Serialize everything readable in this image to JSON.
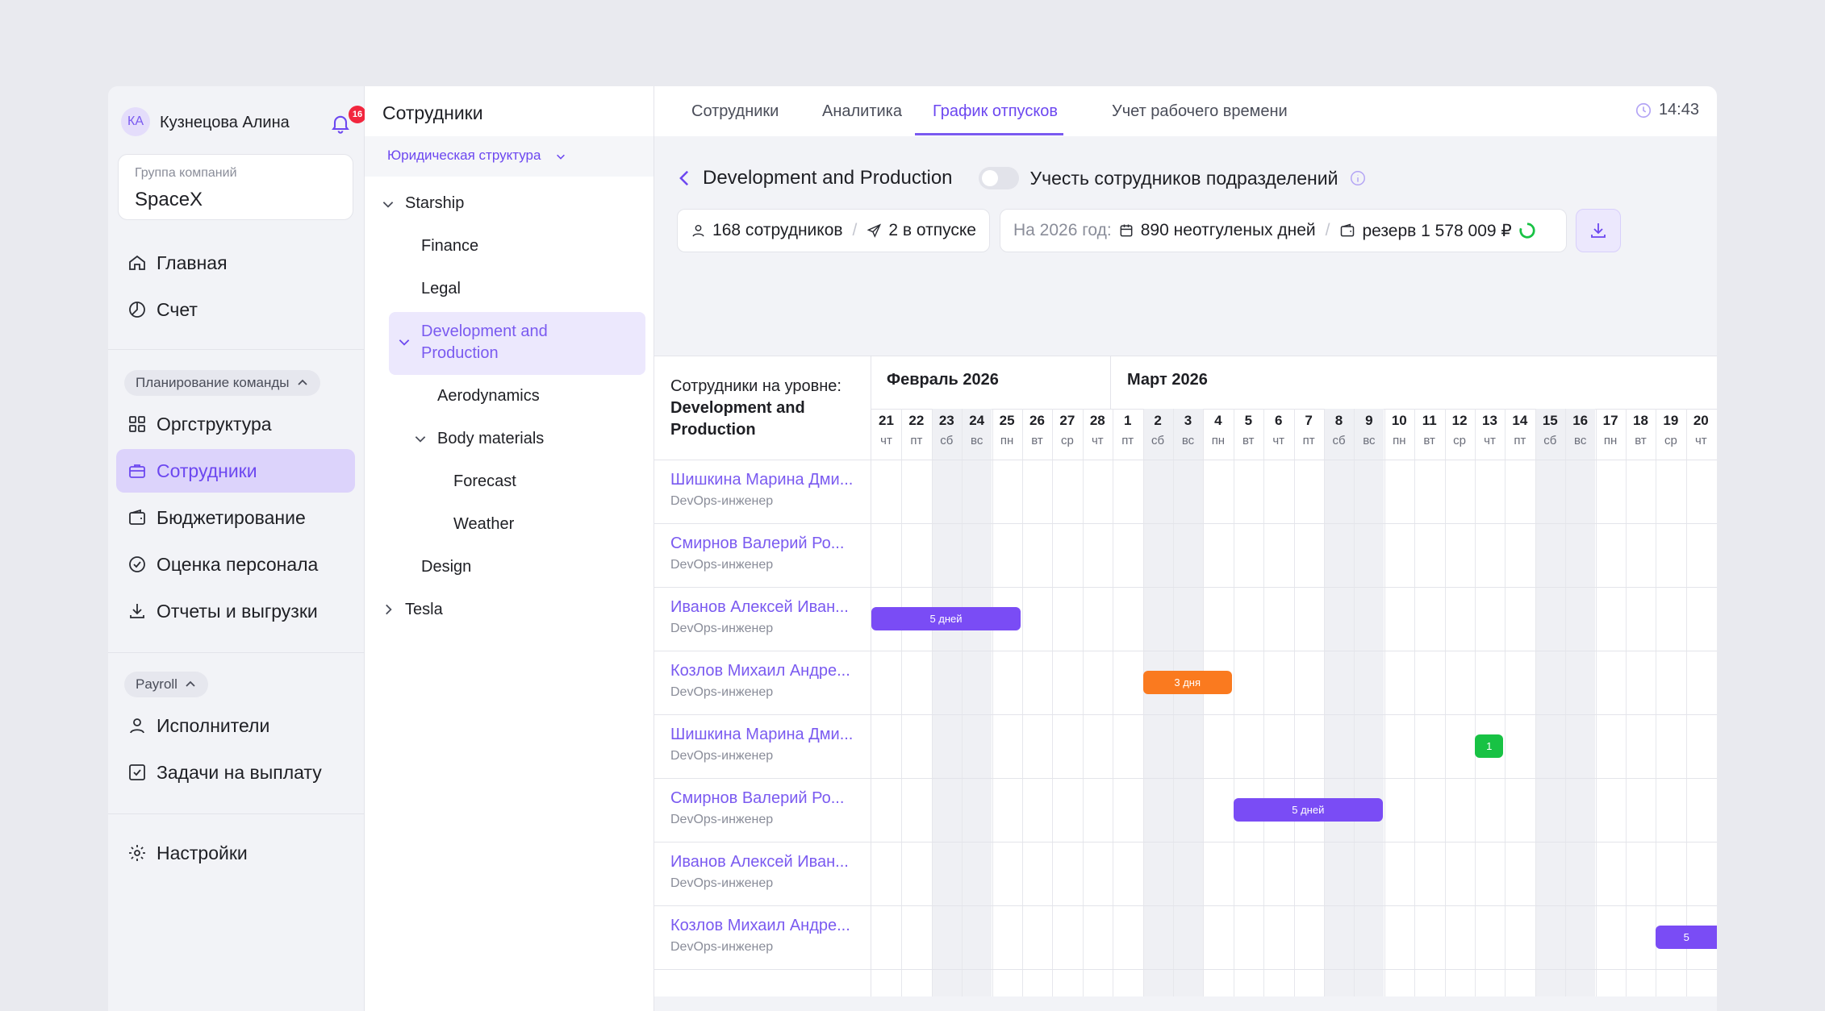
{
  "sidebar": {
    "avatar_initials": "КА",
    "user_name": "Кузнецова Алина",
    "notifications": "16",
    "company_label": "Группа компаний",
    "company_value": "SpaceX",
    "main": [
      "Главная",
      "Счет"
    ],
    "group1": "Планирование команды",
    "group1_items": [
      "Оргструктура",
      "Сотрудники",
      "Бюджетирование",
      "Оценка персонала",
      "Отчеты и выгрузки"
    ],
    "group2": "Payroll",
    "group2_items": [
      "Исполнители",
      "Задачи на выплату"
    ],
    "settings": "Настройки"
  },
  "middle": {
    "title": "Сотрудники",
    "legal_structure": "Юридическая структура",
    "tree": [
      "Starship",
      "Finance",
      "Legal",
      "Development and",
      "Production",
      "Aerodynamics",
      "Body materials",
      "Forecast",
      "Weather",
      "Design",
      "Tesla"
    ]
  },
  "tabs": [
    "Сотрудники",
    "Аналитика",
    "График отпусков",
    "Учет рабочего времени"
  ],
  "time": "14:43",
  "header": {
    "title": "Development and Production",
    "toggle_label": "Учесть сотрудников подразделений"
  },
  "stats": {
    "employees": "168 сотрудников",
    "on_vacation": "2 в отпуске",
    "year_label": "На 2026 год:",
    "unused_days": "890 неотгуленых дней",
    "reserve": "резерв 1 578 009 ₽"
  },
  "calendar": {
    "head_label": "Сотрудники на уровне:",
    "head_unit_1": "Development and",
    "head_unit_2": "Production",
    "months": [
      "Февраль 2026",
      "Март 2026"
    ],
    "days": [
      [
        "21",
        "чт"
      ],
      [
        "22",
        "пт"
      ],
      [
        "23",
        "сб"
      ],
      [
        "24",
        "вс"
      ],
      [
        "25",
        "пн"
      ],
      [
        "26",
        "вт"
      ],
      [
        "27",
        "ср"
      ],
      [
        "28",
        "чт"
      ],
      [
        "1",
        "пт"
      ],
      [
        "2",
        "сб"
      ],
      [
        "3",
        "вс"
      ],
      [
        "4",
        "пн"
      ],
      [
        "5",
        "вт"
      ],
      [
        "6",
        "чт"
      ],
      [
        "7",
        "пт"
      ],
      [
        "8",
        "сб"
      ],
      [
        "9",
        "вс"
      ],
      [
        "10",
        "пн"
      ],
      [
        "11",
        "вт"
      ],
      [
        "12",
        "ср"
      ],
      [
        "13",
        "чт"
      ],
      [
        "14",
        "пт"
      ],
      [
        "15",
        "сб"
      ],
      [
        "16",
        "вс"
      ],
      [
        "17",
        "пн"
      ],
      [
        "18",
        "вт"
      ],
      [
        "19",
        "ср"
      ],
      [
        "20",
        "чт"
      ]
    ],
    "weekend_idx": [
      2,
      3,
      9,
      10,
      15,
      16,
      22,
      23
    ],
    "rows": [
      {
        "name": "Шишкина Марина Дми...",
        "role": "DevOps-инженер"
      },
      {
        "name": "Смирнов Валерий Ро...",
        "role": "DevOps-инженер"
      },
      {
        "name": "Иванов Алексей Иван...",
        "role": "DevOps-инженер"
      },
      {
        "name": "Козлов Михаил Андре...",
        "role": "DevOps-инженер"
      },
      {
        "name": "Шишкина Марина Дми...",
        "role": "DevOps-инженер"
      },
      {
        "name": "Смирнов Валерий Ро...",
        "role": "DevOps-инженер"
      },
      {
        "name": "Иванов Алексей Иван...",
        "role": "DevOps-инженер"
      },
      {
        "name": "Козлов Михаил Андре...",
        "role": "DevOps-инженер"
      }
    ],
    "bars": [
      {
        "row": 2,
        "start": 0,
        "days": 5,
        "label": "5 дней",
        "color": "#7a4cf5"
      },
      {
        "row": 3,
        "start": 9,
        "days": 3,
        "label": "3 дня",
        "color": "#fa7a1f"
      },
      {
        "row": 4,
        "start": 20,
        "days": 1,
        "label": "1",
        "color": "#18c244"
      },
      {
        "row": 5,
        "start": 12,
        "days": 5,
        "label": "5 дней",
        "color": "#7a4cf5"
      },
      {
        "row": 7,
        "start": 26,
        "days": 5,
        "label": "5",
        "color": "#7a4cf5"
      }
    ]
  },
  "colors": {
    "accent": "#7a5af0",
    "orange": "#fa7a1f",
    "green": "#18c244",
    "badge": "#f2263e"
  }
}
